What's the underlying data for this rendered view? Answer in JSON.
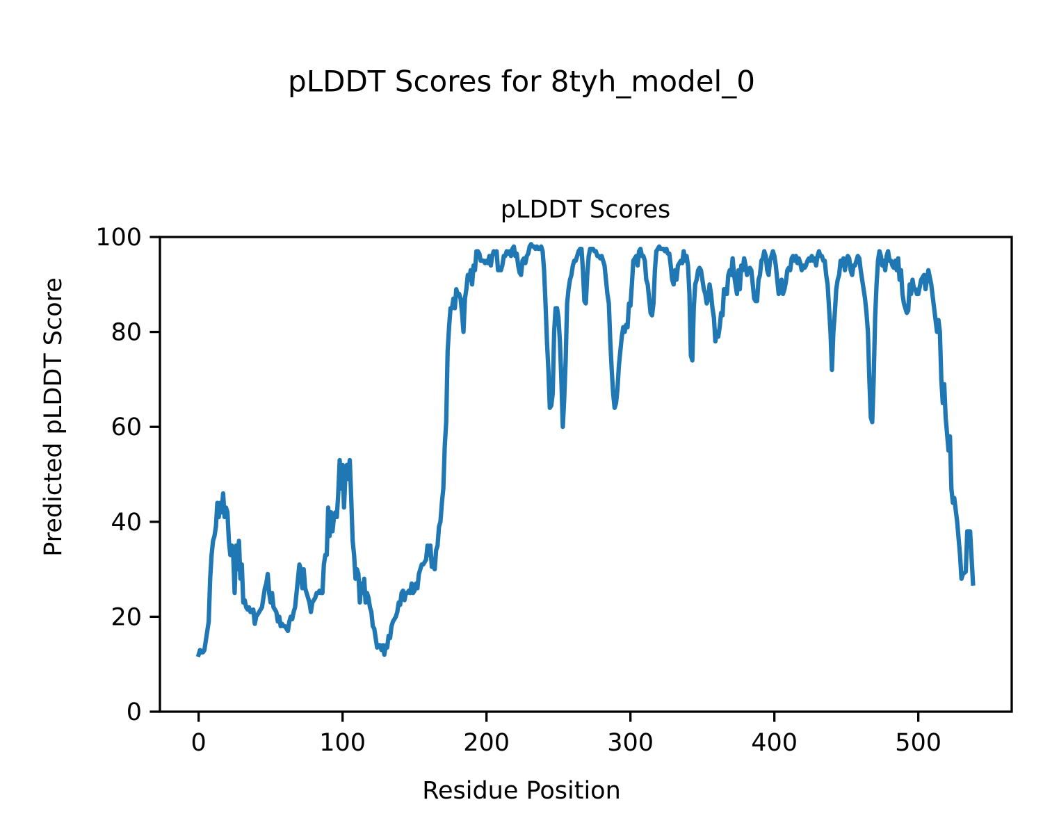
{
  "chart_data": {
    "type": "line",
    "suptitle": "pLDDT Scores for 8tyh_model_0",
    "title": "pLDDT Scores",
    "xlabel": "Residue Position",
    "ylabel": "Predicted pLDDT Score",
    "color": "#1f77b4",
    "grid": false,
    "xlim": [
      -26.9,
      564.9
    ],
    "ylim": [
      0,
      100
    ],
    "xticks": [
      0,
      100,
      200,
      300,
      400,
      500
    ],
    "yticks": [
      0,
      20,
      40,
      60,
      80,
      100
    ],
    "x": [
      0,
      1,
      2,
      3,
      4,
      5,
      6,
      7,
      8,
      9,
      10,
      11,
      12,
      13,
      14,
      15,
      16,
      17,
      18,
      19,
      20,
      21,
      22,
      23,
      24,
      25,
      26,
      27,
      28,
      29,
      30,
      31,
      32,
      33,
      34,
      35,
      36,
      37,
      38,
      39,
      40,
      41,
      42,
      43,
      44,
      45,
      46,
      47,
      48,
      49,
      50,
      51,
      52,
      53,
      54,
      55,
      56,
      57,
      58,
      59,
      60,
      61,
      62,
      63,
      64,
      65,
      66,
      67,
      68,
      69,
      70,
      71,
      72,
      73,
      74,
      75,
      76,
      77,
      78,
      79,
      80,
      81,
      82,
      83,
      84,
      85,
      86,
      87,
      88,
      89,
      90,
      91,
      92,
      93,
      94,
      95,
      96,
      97,
      98,
      99,
      100,
      101,
      102,
      103,
      104,
      105,
      106,
      107,
      108,
      109,
      110,
      111,
      112,
      113,
      114,
      115,
      116,
      117,
      118,
      119,
      120,
      121,
      122,
      123,
      124,
      125,
      126,
      127,
      128,
      129,
      130,
      131,
      132,
      133,
      134,
      135,
      136,
      137,
      138,
      139,
      140,
      141,
      142,
      143,
      144,
      145,
      146,
      147,
      148,
      149,
      150,
      151,
      152,
      153,
      154,
      155,
      156,
      157,
      158,
      159,
      160,
      161,
      162,
      163,
      164,
      165,
      166,
      167,
      168,
      169,
      170,
      171,
      172,
      173,
      174,
      175,
      176,
      177,
      178,
      179,
      180,
      181,
      182,
      183,
      184,
      185,
      186,
      187,
      188,
      189,
      190,
      191,
      192,
      193,
      194,
      195,
      196,
      197,
      198,
      199,
      200,
      201,
      202,
      203,
      204,
      205,
      206,
      207,
      208,
      209,
      210,
      211,
      212,
      213,
      214,
      215,
      216,
      217,
      218,
      219,
      220,
      221,
      222,
      223,
      224,
      225,
      226,
      227,
      228,
      229,
      230,
      231,
      232,
      233,
      234,
      235,
      236,
      237,
      238,
      239,
      240,
      241,
      242,
      243,
      244,
      245,
      246,
      247,
      248,
      249,
      250,
      251,
      252,
      253,
      254,
      255,
      256,
      257,
      258,
      259,
      260,
      261,
      262,
      263,
      264,
      265,
      266,
      267,
      268,
      269,
      270,
      271,
      272,
      273,
      274,
      275,
      276,
      277,
      278,
      279,
      280,
      281,
      282,
      283,
      284,
      285,
      286,
      287,
      288,
      289,
      290,
      291,
      292,
      293,
      294,
      295,
      296,
      297,
      298,
      299,
      300,
      301,
      302,
      303,
      304,
      305,
      306,
      307,
      308,
      309,
      310,
      311,
      312,
      313,
      314,
      315,
      316,
      317,
      318,
      319,
      320,
      321,
      322,
      323,
      324,
      325,
      326,
      327,
      328,
      329,
      330,
      331,
      332,
      333,
      334,
      335,
      336,
      337,
      338,
      339,
      340,
      341,
      342,
      343,
      344,
      345,
      346,
      347,
      348,
      349,
      350,
      351,
      352,
      353,
      354,
      355,
      356,
      357,
      358,
      359,
      360,
      361,
      362,
      363,
      364,
      365,
      366,
      367,
      368,
      369,
      370,
      371,
      372,
      373,
      374,
      375,
      376,
      377,
      378,
      379,
      380,
      381,
      382,
      383,
      384,
      385,
      386,
      387,
      388,
      389,
      390,
      391,
      392,
      393,
      394,
      395,
      396,
      397,
      398,
      399,
      400,
      401,
      402,
      403,
      404,
      405,
      406,
      407,
      408,
      409,
      410,
      411,
      412,
      413,
      414,
      415,
      416,
      417,
      418,
      419,
      420,
      421,
      422,
      423,
      424,
      425,
      426,
      427,
      428,
      429,
      430,
      431,
      432,
      433,
      434,
      435,
      436,
      437,
      438,
      439,
      440,
      441,
      442,
      443,
      444,
      445,
      446,
      447,
      448,
      449,
      450,
      451,
      452,
      453,
      454,
      455,
      456,
      457,
      458,
      459,
      460,
      461,
      462,
      463,
      464,
      465,
      466,
      467,
      468,
      469,
      470,
      471,
      472,
      473,
      474,
      475,
      476,
      477,
      478,
      479,
      480,
      481,
      482,
      483,
      484,
      485,
      486,
      487,
      488,
      489,
      490,
      491,
      492,
      493,
      494,
      495,
      496,
      497,
      498,
      499,
      500,
      502,
      504,
      505,
      507,
      509,
      511,
      513,
      514,
      515,
      516,
      517,
      518,
      519,
      521,
      522,
      523,
      524,
      525,
      527,
      529,
      530,
      531,
      533,
      534,
      536,
      538
    ],
    "values": [
      12,
      13,
      12.5,
      12.5,
      13,
      15,
      17,
      19,
      28,
      33,
      36,
      37,
      39,
      44,
      41,
      44,
      42,
      46,
      41,
      43,
      42,
      36,
      33,
      35,
      33,
      25,
      35,
      30,
      36,
      28,
      31,
      23,
      23.5,
      22,
      21.5,
      22,
      21,
      21,
      21.5,
      18.5,
      20,
      20.5,
      21,
      21.5,
      22,
      24,
      26,
      27,
      29,
      25,
      23,
      25,
      22,
      21.5,
      21,
      19,
      20,
      18,
      18.5,
      18,
      18,
      17.5,
      17,
      19,
      20,
      19.5,
      21,
      22,
      25,
      28,
      31,
      30,
      26,
      30,
      26,
      25,
      24,
      23,
      21,
      23,
      23.5,
      24,
      25,
      25,
      25.5,
      25,
      25,
      31,
      33,
      33,
      43,
      37,
      42,
      38,
      41,
      42,
      41,
      46,
      53,
      47,
      52,
      43,
      50,
      52,
      49,
      53,
      45,
      36,
      33,
      28,
      30,
      29,
      23,
      27,
      25,
      28,
      23,
      25,
      24,
      22,
      21,
      18,
      17.5,
      15.5,
      13.5,
      14,
      14,
      13,
      14,
      12,
      14,
      13.5,
      16,
      15.5,
      18,
      19,
      19.5,
      20,
      21,
      23,
      22.5,
      25,
      25.5,
      23.5,
      25,
      25,
      25.5,
      25,
      27,
      25,
      25.5,
      27,
      26,
      29,
      30,
      31,
      31,
      31.5,
      32,
      35,
      33,
      35,
      30.5,
      31,
      30,
      34,
      35,
      39,
      40,
      44,
      47,
      56,
      61,
      76,
      81,
      85,
      85,
      87,
      85,
      89,
      88,
      88,
      87,
      84,
      80,
      87,
      89,
      92,
      91,
      93,
      90,
      94,
      93,
      97,
      97,
      96.5,
      95,
      95,
      95,
      94.5,
      95,
      94.5,
      96,
      94,
      96,
      97,
      96.5,
      97,
      93,
      93,
      93,
      94,
      96,
      96,
      97,
      96.5,
      97,
      96,
      97.5,
      98,
      96,
      96.5,
      94,
      92.5,
      92,
      95,
      95.5,
      94.5,
      96,
      96.5,
      98,
      98.5,
      98,
      98,
      97.5,
      98,
      97.5,
      97.5,
      98,
      97,
      93,
      86,
      78,
      72,
      64,
      64.5,
      67,
      80,
      85,
      85,
      83,
      78,
      70,
      60,
      66,
      74,
      86,
      89,
      91,
      92,
      94,
      95,
      95,
      96,
      97,
      97.5,
      97.5,
      93,
      86.5,
      86,
      92,
      96,
      97.5,
      97.5,
      97.5,
      97,
      97,
      96,
      96,
      95.5,
      96,
      95,
      94,
      91,
      88,
      86,
      78,
      72,
      67,
      64,
      65,
      68,
      73,
      76,
      79,
      81,
      80,
      81.5,
      81,
      86,
      85.5,
      90,
      95,
      95.5,
      96,
      94,
      97,
      97.5,
      96,
      96,
      95,
      91,
      90,
      87,
      84,
      83.5,
      86,
      93,
      97,
      97.5,
      98,
      97.5,
      97.5,
      97.5,
      97,
      97.5,
      96.5,
      96.5,
      94,
      91,
      90,
      93,
      91,
      94,
      94.5,
      95,
      94.5,
      97,
      95,
      96,
      94,
      88,
      75,
      74,
      85,
      90,
      91,
      93,
      93.5,
      93,
      91,
      89,
      88,
      86,
      87,
      90,
      88,
      85,
      83,
      78,
      80,
      79,
      81,
      84,
      83.5,
      89,
      89,
      88,
      92,
      93,
      92,
      95.5,
      92,
      90,
      88,
      93,
      89,
      94,
      93,
      95.5,
      94,
      92,
      93,
      93.5,
      93,
      90,
      87,
      86.5,
      86.5,
      91,
      92,
      95,
      95.5,
      97,
      96,
      93,
      92,
      95,
      96,
      97,
      96,
      94,
      91,
      88,
      89,
      91,
      88,
      89,
      90.5,
      93,
      93.5,
      93,
      95.5,
      96,
      95,
      96,
      94.5,
      95.5,
      94.5,
      93,
      94,
      93.5,
      94,
      95,
      95.5,
      95,
      96,
      95,
      95.5,
      94,
      96,
      97,
      96,
      96,
      95,
      95,
      92,
      90,
      85,
      80,
      72,
      80,
      84,
      89,
      91,
      92,
      95,
      94,
      95.5,
      93,
      95,
      96,
      95.5,
      93,
      92,
      94,
      94,
      95,
      96,
      95.5,
      93,
      91,
      89,
      87,
      84,
      80,
      70,
      62,
      61,
      70,
      83,
      90,
      95,
      97,
      96,
      94,
      95,
      93,
      96,
      97,
      95,
      95,
      94,
      93.5,
      95,
      93,
      95.5,
      91,
      93,
      88,
      86,
      85,
      84,
      84.5,
      90,
      88,
      91,
      89,
      89,
      88,
      88,
      91,
      92,
      89,
      93,
      90,
      85,
      80,
      82.5,
      80,
      70,
      65,
      69,
      62,
      55,
      58,
      47,
      44,
      45,
      40,
      33,
      28,
      29,
      29.5,
      38,
      38,
      27
    ]
  }
}
